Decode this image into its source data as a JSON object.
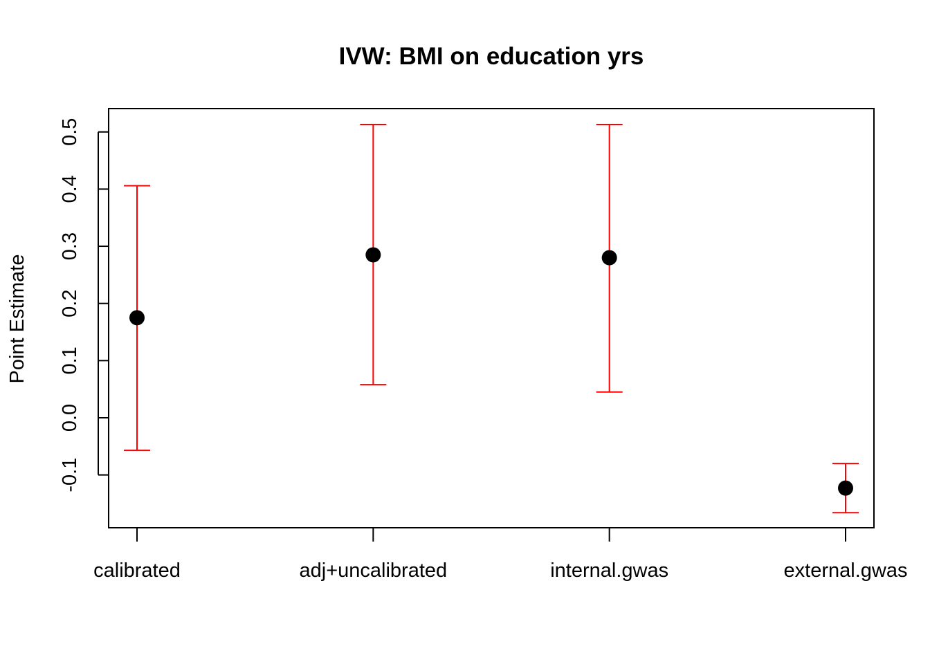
{
  "chart_data": {
    "type": "scatter",
    "title": "IVW: BMI on education yrs",
    "xlabel": "",
    "ylabel": "Point Estimate",
    "categories": [
      "calibrated",
      "adj+uncalibrated",
      "internal.gwas",
      "external.gwas"
    ],
    "series": [
      {
        "estimate": [
          0.175,
          0.285,
          0.28,
          -0.123
        ],
        "lower": [
          -0.057,
          0.058,
          0.045,
          -0.166
        ],
        "upper": [
          0.406,
          0.513,
          0.513,
          -0.08
        ]
      }
    ],
    "ylim": [
      -0.19,
      0.54
    ],
    "yticks": [
      -0.1,
      0.0,
      0.1,
      0.2,
      0.3,
      0.4,
      0.5
    ],
    "ytick_labels": [
      "-0.1",
      "0.0",
      "0.1",
      "0.2",
      "0.3",
      "0.4",
      "0.5"
    ],
    "grid": false,
    "legend": "none",
    "colors": {
      "point": "#000000",
      "errorbar": "#ff0000",
      "axis": "#000000"
    }
  }
}
